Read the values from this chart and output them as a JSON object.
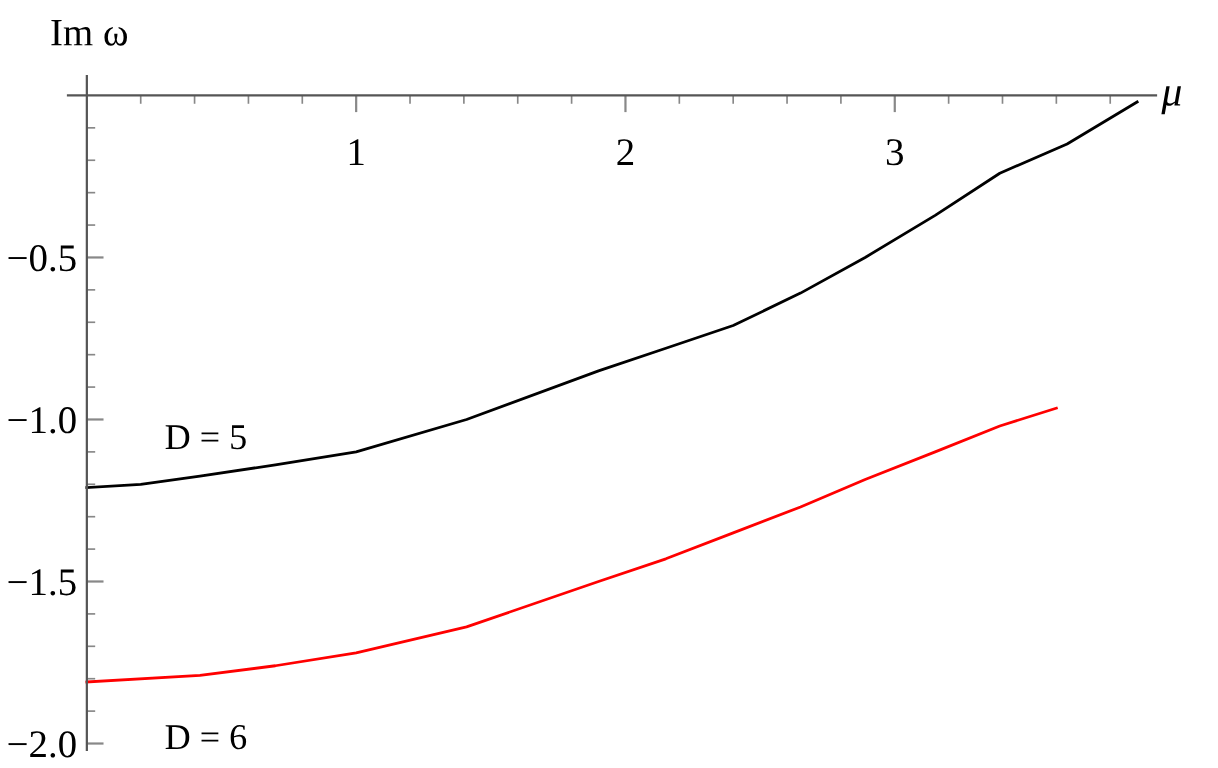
{
  "chart_data": {
    "type": "line",
    "xlabel": "μ",
    "ylabel": "Im ω",
    "xlim": [
      -0.07,
      3.97
    ],
    "ylim": [
      -2.02,
      0.06
    ],
    "xticks": [
      {
        "value": 0.2,
        "label": null
      },
      {
        "value": 0.4,
        "label": null
      },
      {
        "value": 0.6,
        "label": null
      },
      {
        "value": 0.8,
        "label": null
      },
      1,
      {
        "value": 1.2,
        "label": null
      },
      {
        "value": 1.4,
        "label": null
      },
      {
        "value": 1.6,
        "label": null
      },
      {
        "value": 1.8,
        "label": null
      },
      2,
      {
        "value": 2.2,
        "label": null
      },
      {
        "value": 2.4,
        "label": null
      },
      {
        "value": 2.6,
        "label": null
      },
      {
        "value": 2.8,
        "label": null
      },
      3,
      {
        "value": 3.2,
        "label": null
      },
      {
        "value": 3.4,
        "label": null
      },
      {
        "value": 3.6,
        "label": null
      },
      {
        "value": 3.8,
        "label": null
      }
    ],
    "yticks": [
      {
        "value": -0.1,
        "label": null
      },
      {
        "value": -0.2,
        "label": null
      },
      {
        "value": -0.3,
        "label": null
      },
      {
        "value": -0.4,
        "label": null
      },
      {
        "value": -0.5,
        "label": "−0.5"
      },
      {
        "value": -0.6,
        "label": null
      },
      {
        "value": -0.7,
        "label": null
      },
      {
        "value": -0.8,
        "label": null
      },
      {
        "value": -0.9,
        "label": null
      },
      {
        "value": -1.0,
        "label": "−1.0"
      },
      {
        "value": -1.1,
        "label": null
      },
      {
        "value": -1.2,
        "label": null
      },
      {
        "value": -1.3,
        "label": null
      },
      {
        "value": -1.4,
        "label": null
      },
      {
        "value": -1.5,
        "label": "−1.5"
      },
      {
        "value": -1.6,
        "label": null
      },
      {
        "value": -1.7,
        "label": null
      },
      {
        "value": -1.8,
        "label": null
      },
      {
        "value": -1.9,
        "label": null
      },
      {
        "value": -2.0,
        "label": "−2.0"
      }
    ],
    "grid": false,
    "legend": false,
    "marker": "none",
    "line_style": "solid",
    "series": [
      {
        "name": "D = 5",
        "color": "#000000",
        "x": [
          0,
          0.2,
          0.42,
          0.7,
          1.0,
          1.41,
          1.9,
          2.15,
          2.4,
          2.65,
          2.89,
          3.15,
          3.39,
          3.64,
          3.9
        ],
        "values": [
          -1.21,
          -1.2,
          -1.175,
          -1.14,
          -1.1,
          -1.0,
          -0.85,
          -0.78,
          -0.71,
          -0.61,
          -0.5,
          -0.37,
          -0.24,
          -0.15,
          -0.02
        ]
      },
      {
        "name": "D = 6",
        "color": "#ff0000",
        "x": [
          0,
          0.42,
          0.7,
          1.0,
          1.41,
          1.9,
          2.15,
          2.4,
          2.65,
          2.89,
          3.15,
          3.39,
          3.6
        ],
        "values": [
          -1.81,
          -1.79,
          -1.76,
          -1.72,
          -1.64,
          -1.5,
          -1.43,
          -1.35,
          -1.27,
          -1.185,
          -1.1,
          -1.02,
          -0.965
        ]
      }
    ]
  }
}
